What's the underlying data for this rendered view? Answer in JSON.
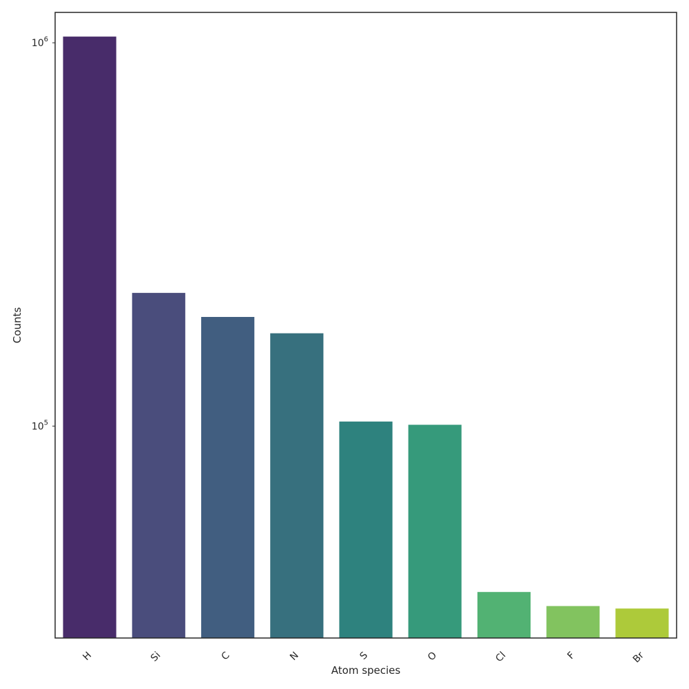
{
  "chart_data": {
    "type": "bar",
    "title": "",
    "xlabel": "Atom species",
    "ylabel": "Counts",
    "yscale": "log",
    "ylim": [
      28000,
      1200000
    ],
    "yticks": [
      {
        "value": 100000,
        "base": "10",
        "exp": "5"
      },
      {
        "value": 1000000,
        "base": "10",
        "exp": "6"
      }
    ],
    "categories": [
      "H",
      "Si",
      "C",
      "N",
      "S",
      "O",
      "Cl",
      "F",
      "Br"
    ],
    "values": [
      1040000,
      223000,
      193000,
      175000,
      103000,
      101000,
      37000,
      34000,
      33500
    ],
    "colors": [
      "#482c6a",
      "#4a4d7c",
      "#415e80",
      "#37707e",
      "#2e827e",
      "#369a7b",
      "#52b273",
      "#82c35f",
      "#adca3a"
    ],
    "grid": false,
    "legend": "none"
  }
}
